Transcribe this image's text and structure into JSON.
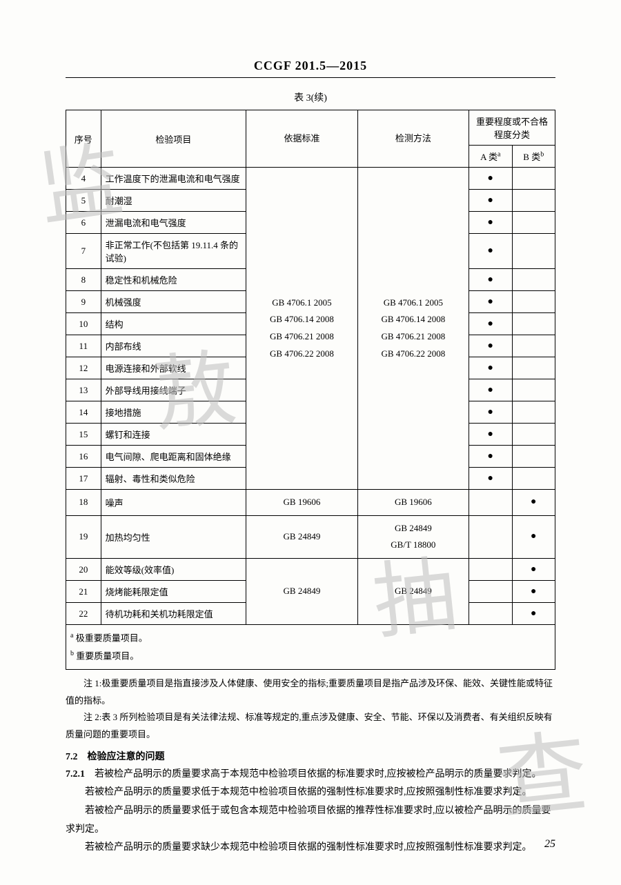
{
  "header": {
    "code": "CCGF 201.5—2015"
  },
  "table": {
    "caption": "表 3(续)",
    "columns": {
      "seq": "序号",
      "item": "检验项目",
      "std": "依据标准",
      "method": "检测方法",
      "grade_group": "重要程度或不合格程度分类",
      "a": "A 类",
      "a_sup": "a",
      "b": "B 类",
      "b_sup": "b"
    },
    "merged_std_lines": [
      "GB 4706.1   2005",
      "GB 4706.14  2008",
      "GB 4706.21  2008",
      "GB 4706.22  2008"
    ],
    "merged_method_lines": [
      "GB 4706.1   2005",
      "GB 4706.14  2008",
      "GB 4706.21  2008",
      "GB 4706.22  2008"
    ],
    "groupA": [
      {
        "n": "4",
        "item": "工作温度下的泄漏电流和电气强度",
        "a": "●",
        "b": ""
      },
      {
        "n": "5",
        "item": "耐潮湿",
        "a": "●",
        "b": ""
      },
      {
        "n": "6",
        "item": "泄漏电流和电气强度",
        "a": "●",
        "b": ""
      },
      {
        "n": "7",
        "item": "非正常工作(不包括第 19.11.4 条的试验)",
        "a": "●",
        "b": ""
      },
      {
        "n": "8",
        "item": "稳定性和机械危险",
        "a": "●",
        "b": ""
      },
      {
        "n": "9",
        "item": "机械强度",
        "a": "●",
        "b": ""
      },
      {
        "n": "10",
        "item": "结构",
        "a": "●",
        "b": ""
      },
      {
        "n": "11",
        "item": "内部布线",
        "a": "●",
        "b": ""
      },
      {
        "n": "12",
        "item": "电源连接和外部软线",
        "a": "●",
        "b": ""
      },
      {
        "n": "13",
        "item": "外部导线用接线端子",
        "a": "●",
        "b": ""
      },
      {
        "n": "14",
        "item": "接地措施",
        "a": "●",
        "b": ""
      },
      {
        "n": "15",
        "item": "螺钉和连接",
        "a": "●",
        "b": ""
      },
      {
        "n": "16",
        "item": "电气间隙、爬电距离和固体绝缘",
        "a": "●",
        "b": ""
      },
      {
        "n": "17",
        "item": "辐射、毒性和类似危险",
        "a": "●",
        "b": ""
      }
    ],
    "rows_other": [
      {
        "n": "18",
        "item": "噪声",
        "std": "GB 19606",
        "method": "GB 19606",
        "a": "",
        "b": "●"
      },
      {
        "n": "19",
        "item": "加热均匀性",
        "std": "GB 24849",
        "method": "GB 24849\nGB/T 18800",
        "a": "",
        "b": "●"
      }
    ],
    "groupB": [
      {
        "n": "20",
        "item": "能效等级(效率值)",
        "a": "",
        "b": "●"
      },
      {
        "n": "21",
        "item": "烧烤能耗限定值",
        "a": "",
        "b": "●"
      },
      {
        "n": "22",
        "item": "待机功耗和关机功耗限定值",
        "a": "",
        "b": "●"
      }
    ],
    "groupB_std": "GB 24849",
    "groupB_method": "GB 24849",
    "footnotes": {
      "a": "极重要质量项目。",
      "b": "重要质量项目。"
    }
  },
  "notes": {
    "n1": "注 1:极重要质量项目是指直接涉及人体健康、使用安全的指标;重要质量项目是指产品涉及环保、能效、关键性能或特征值的指标。",
    "n2": "注 2:表 3 所列检验项目是有关法律法规、标准等规定的,重点涉及健康、安全、节能、环保以及消费者、有关组织反映有质量问题的重要项目。"
  },
  "section": {
    "h": "7.2　检验应注意的问题",
    "c1_num": "7.2.1",
    "c1": "若被检产品明示的质量要求高于本规范中检验项目依据的标准要求时,应按被检产品明示的质量要求判定。",
    "p2": "若被检产品明示的质量要求低于本规范中检验项目依据的强制性标准要求时,应按照强制性标准要求判定。",
    "p3": "若被检产品明示的质量要求低于或包含本规范中检验项目依据的推荐性标准要求时,应以被检产品明示的质量要求判定。",
    "p4": "若被检产品明示的质量要求缺少本规范中检验项目依据的强制性标准要求时,应按照强制性标准要求判定。"
  },
  "page_number": "25",
  "watermark": {
    "w1": "监",
    "w2": "敖",
    "w3": "抽",
    "w4": "查"
  }
}
